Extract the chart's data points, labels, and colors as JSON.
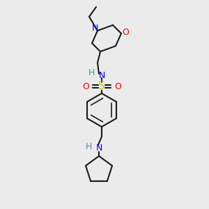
{
  "background_color": "#ebebeb",
  "atom_colors": {
    "N": "#0000ff",
    "O": "#ff0000",
    "S": "#cccc00",
    "H": "#4d9090",
    "C": "#000000"
  },
  "lw": 1.5,
  "fs": 9.0
}
